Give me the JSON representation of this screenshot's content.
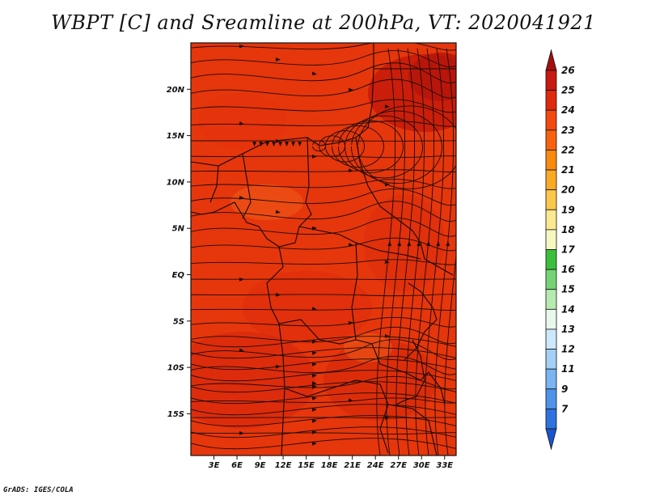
{
  "title": "WBPT [C] and Sreamline at 200hPa, VT: 2020041921",
  "footer": "GrADS: IGES/COLA",
  "map": {
    "x_axis_labels": [
      "3E",
      "6E",
      "9E",
      "12E",
      "15E",
      "18E",
      "21E",
      "24E",
      "27E",
      "30E",
      "33E"
    ],
    "y_axis_labels": [
      "20N",
      "15N",
      "10N",
      "5N",
      "EQ",
      "5S",
      "10S",
      "15S"
    ],
    "lon_range": [
      0,
      34.5
    ],
    "lat_range": [
      -19.5,
      25
    ],
    "field": "WBPT",
    "field_range_shown": [
      23,
      26
    ]
  },
  "colorbar": {
    "labels": [
      "26",
      "25",
      "24",
      "23",
      "22",
      "21",
      "20",
      "19",
      "18",
      "17",
      "16",
      "15",
      "14",
      "13",
      "12",
      "11",
      "9",
      "7"
    ],
    "colors": [
      "#a50f0f",
      "#c8180f",
      "#e0280c",
      "#f34810",
      "#f8620f",
      "#f98a0c",
      "#f9aa25",
      "#fbc84a",
      "#fbe890",
      "#f6f6c0",
      "#3bbf3b",
      "#74d474",
      "#b6ebb0",
      "#e8f8ec",
      "#cce8fb",
      "#a3d0f7",
      "#7ab4f2",
      "#4e92ea",
      "#2e72de",
      "#1a55cf"
    ]
  },
  "colors": {
    "map_background": "#e6360c",
    "streamline": "#1a0c06",
    "border": "#120805"
  }
}
